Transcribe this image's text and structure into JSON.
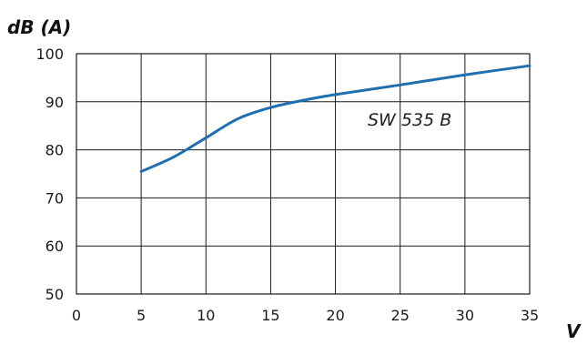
{
  "chart_data": {
    "type": "line",
    "ylabel": "dB (A)",
    "xlabel": "V",
    "xlim": [
      0,
      35
    ],
    "ylim": [
      50,
      100
    ],
    "x_ticks": [
      0,
      5,
      10,
      15,
      20,
      25,
      30,
      35
    ],
    "y_ticks": [
      50,
      60,
      70,
      80,
      90,
      100
    ],
    "x_tick_labels": [
      "0",
      "5",
      "10",
      "15",
      "20",
      "25",
      "30",
      "35"
    ],
    "y_tick_labels": [
      "50",
      "60",
      "70",
      "80",
      "90",
      "100"
    ],
    "grid": true,
    "series": [
      {
        "name": "SW 535 B",
        "color": "#1f6fb0",
        "x": [
          5,
          7.5,
          10,
          12.5,
          15,
          17.5,
          20,
          25,
          30,
          35
        ],
        "y": [
          75.5,
          78.5,
          82.5,
          86.5,
          88.8,
          90.3,
          91.5,
          93.5,
          95.6,
          97.5
        ]
      }
    ]
  }
}
